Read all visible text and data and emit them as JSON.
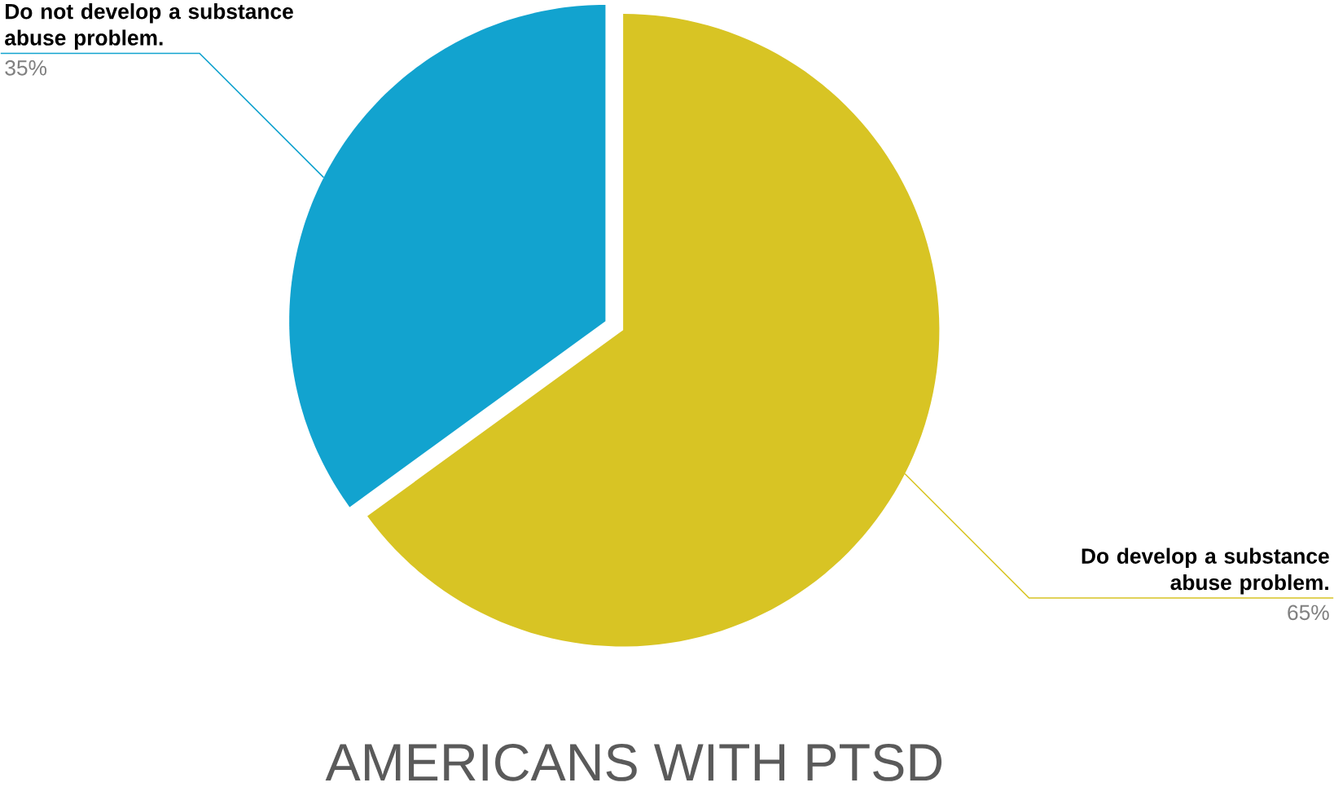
{
  "chart_data": {
    "type": "pie",
    "title": "AMERICANS WITH PTSD",
    "categories": [
      "Do develop a substance abuse problem.",
      "Do not develop a substance abuse problem."
    ],
    "values": [
      65,
      35
    ],
    "colors": [
      "#d8c424",
      "#12a3cf"
    ],
    "value_labels": [
      "65%",
      "35%"
    ]
  }
}
